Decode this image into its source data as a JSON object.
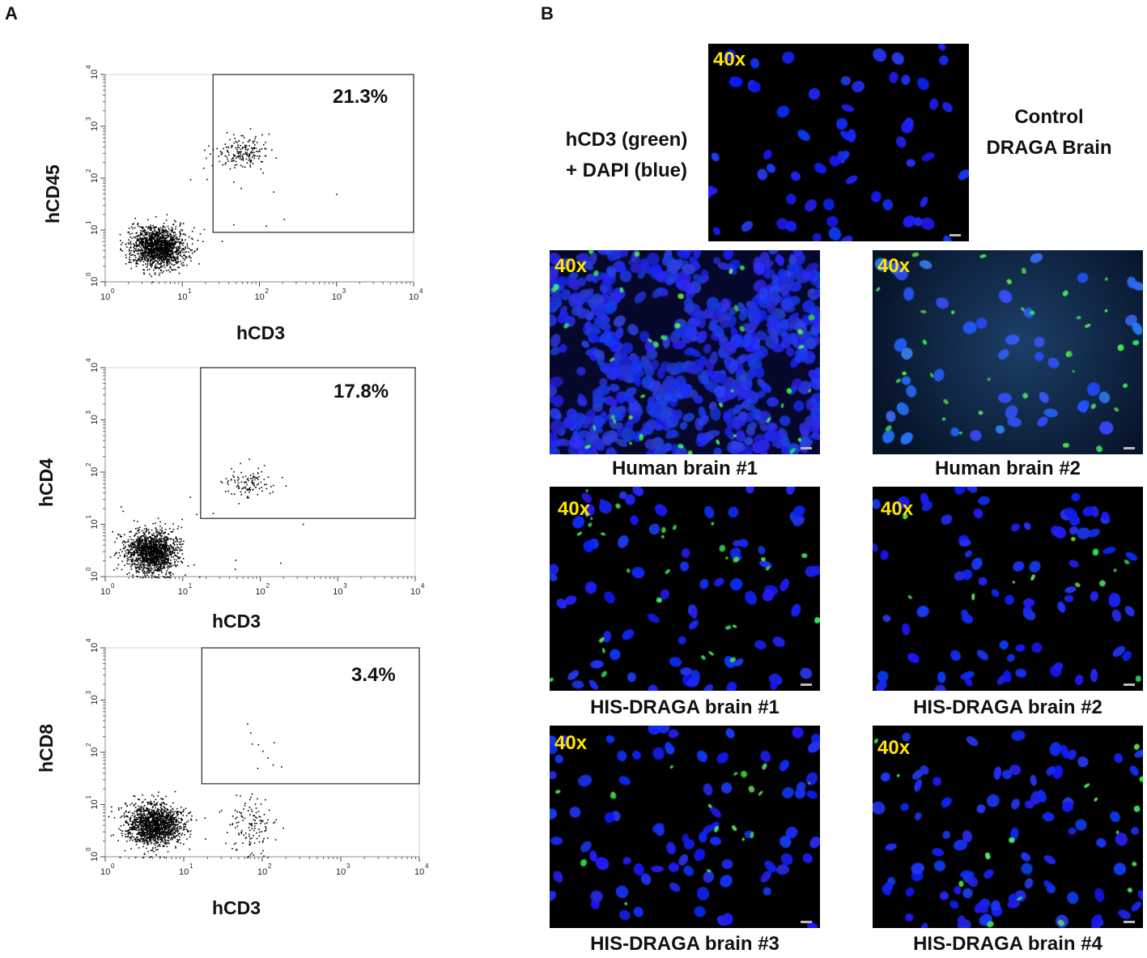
{
  "panel_a": {
    "letter": "A",
    "plots": [
      {
        "ylabel": "hCD45",
        "xlabel": "hCD3",
        "percent": "21.3%",
        "gate": {
          "x0": 25,
          "y0": 9,
          "x1": 10000,
          "y1": 10000
        }
      },
      {
        "ylabel": "hCD4",
        "xlabel": "hCD3",
        "percent": "17.8%",
        "gate": {
          "x0": 17,
          "y0": 13,
          "x1": 10000,
          "y1": 10000
        }
      },
      {
        "ylabel": "hCD8",
        "xlabel": "hCD3",
        "percent": "3.4%",
        "gate": {
          "x0": 17,
          "y0": 25,
          "x1": 10000,
          "y1": 10000
        }
      }
    ],
    "axis_ticks": [
      "10",
      "10",
      "10",
      "10",
      "10"
    ],
    "axis_exponents": [
      "0",
      "1",
      "2",
      "3",
      "4"
    ]
  },
  "panel_b": {
    "letter": "B",
    "stain_label_line1": "hCD3 (green)",
    "stain_label_line2": "+ DAPI (blue)",
    "control_label_line1": "Control",
    "control_label_line2": "DRAGA Brain",
    "magnification": "40x",
    "images": [
      {
        "caption": "",
        "green": 0,
        "density": 60,
        "background": "#000000"
      },
      {
        "caption": "Human brain #1",
        "green": 40,
        "density": 900,
        "background": "#05082a"
      },
      {
        "caption": "Human brain #2",
        "green": 35,
        "density": 45,
        "background": "#0a1838"
      },
      {
        "caption": "HIS-DRAGA brain #1",
        "green": 30,
        "density": 75,
        "background": "#000000"
      },
      {
        "caption": "HIS-DRAGA brain #2",
        "green": 12,
        "density": 80,
        "background": "#000000"
      },
      {
        "caption": "HIS-DRAGA brain #3",
        "green": 18,
        "density": 85,
        "background": "#000000"
      },
      {
        "caption": "HIS-DRAGA brain #4",
        "green": 16,
        "density": 90,
        "background": "#000000"
      }
    ]
  }
}
